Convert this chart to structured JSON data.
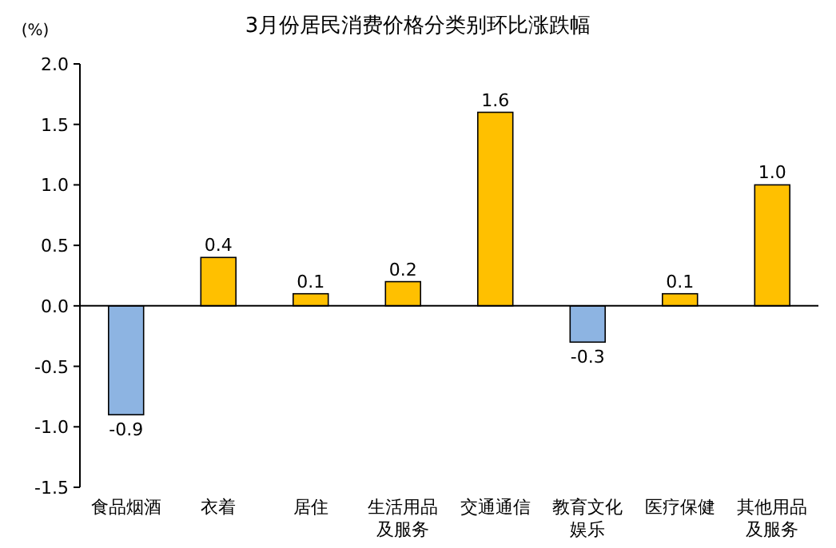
{
  "chart_data": {
    "type": "bar",
    "title": "3月份居民消费价格分类别环比涨跌幅",
    "ylabel": "(%)",
    "categories": [
      "食品烟酒",
      "衣着",
      "居住",
      "生活用品及服务",
      "交通通信",
      "教育文化娱乐",
      "医疗保健",
      "其他用品及服务"
    ],
    "values": [
      -0.9,
      0.4,
      0.1,
      0.2,
      1.6,
      -0.3,
      0.1,
      1.0
    ],
    "colors": [
      "#8db4e2",
      "#ffc000",
      "#ffc000",
      "#ffc000",
      "#ffc000",
      "#8db4e2",
      "#ffc000",
      "#ffc000"
    ],
    "value_labels": [
      "-0.9",
      "0.4",
      "0.1",
      "0.2",
      "1.6",
      "-0.3",
      "0.1",
      "1.0"
    ],
    "ylim": [
      -1.5,
      2.0
    ],
    "yticks": [
      {
        "value": -1.5,
        "label": "-1.5"
      },
      {
        "value": -1.0,
        "label": "-1.0"
      },
      {
        "value": -0.5,
        "label": "-0.5"
      },
      {
        "value": 0,
        "label": "0.0"
      },
      {
        "value": 0.5,
        "label": "0.5"
      },
      {
        "value": 1.0,
        "label": "1.0"
      },
      {
        "value": 1.5,
        "label": "1.5"
      },
      {
        "value": 2.0,
        "label": "2.0"
      }
    ]
  }
}
